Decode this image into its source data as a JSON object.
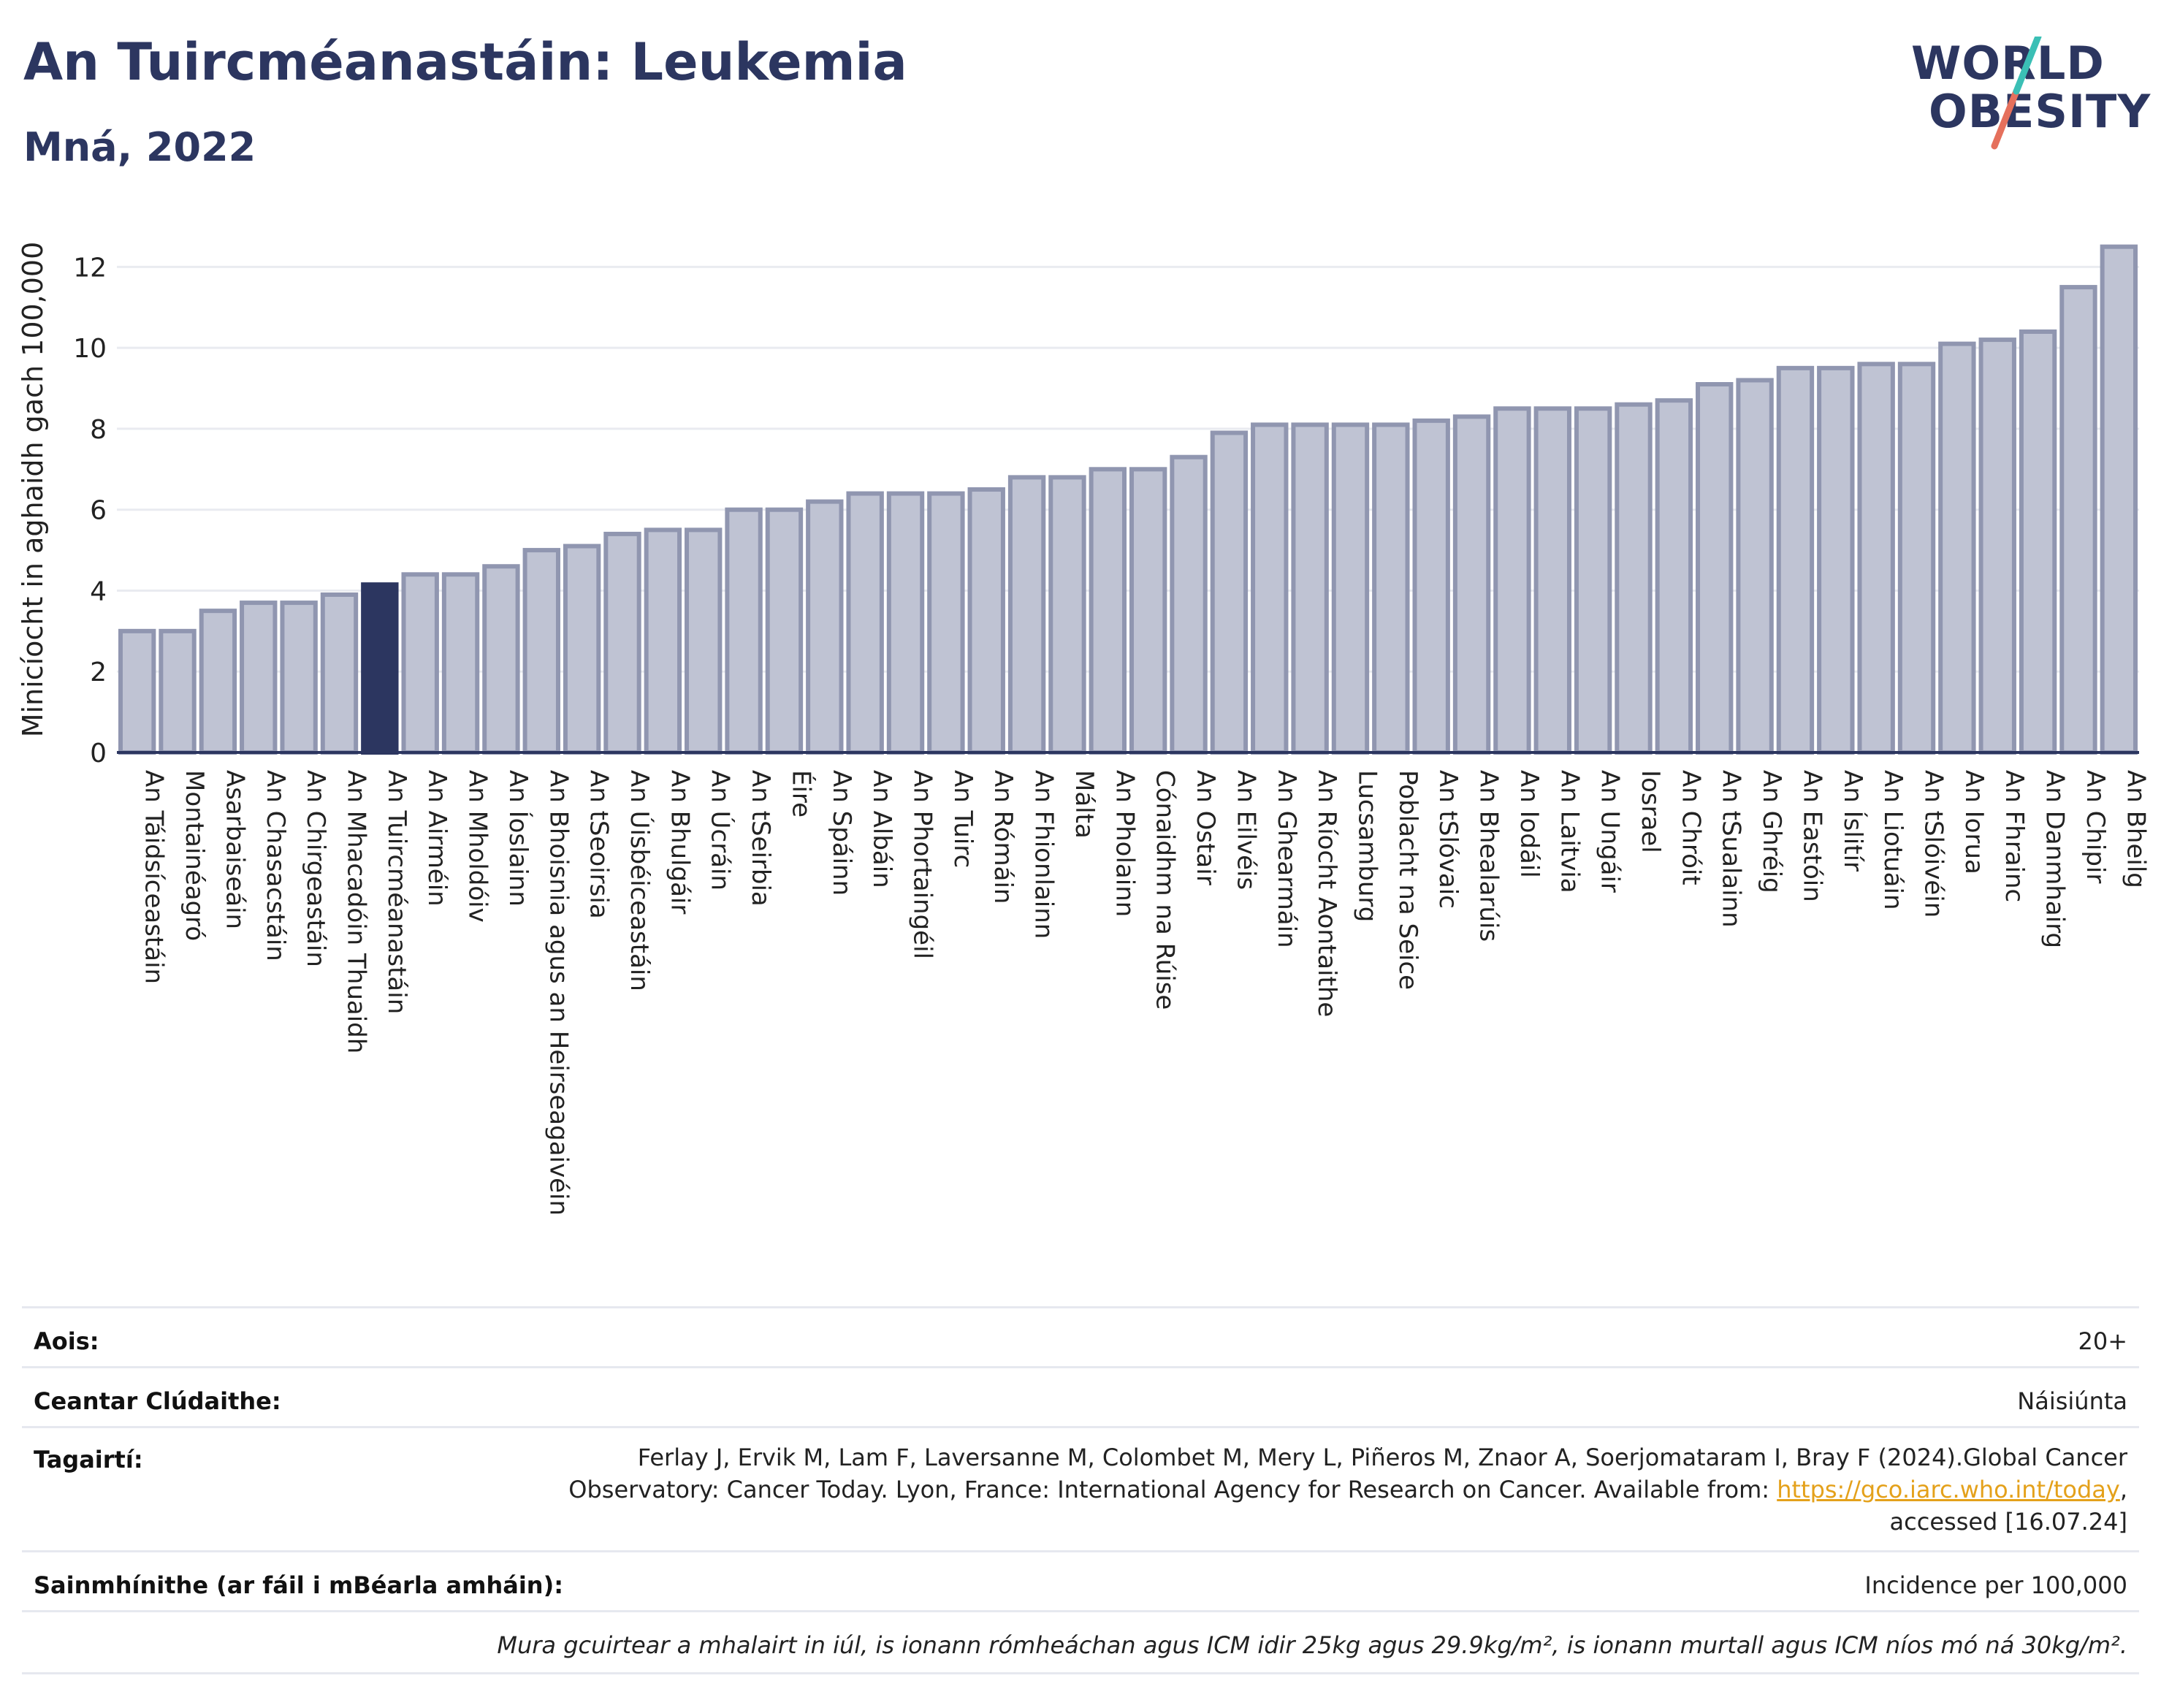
{
  "header": {
    "title": "An Tuircméanastáin: Leukemia",
    "subtitle": "Mná, 2022"
  },
  "logo": {
    "line1": "WORLD",
    "line2": "OBESITY"
  },
  "colors": {
    "bar": "#bfc3d3",
    "bar_border": "#9096b0",
    "highlight": "#2c3660",
    "title": "#2c3660"
  },
  "chart_data": {
    "type": "bar",
    "ylabel": "Minicíocht in aghaidh gach 100,000",
    "ylim": [
      0,
      13
    ],
    "yticks": [
      0,
      2,
      4,
      6,
      8,
      10,
      12
    ],
    "grid": true,
    "highlight": "An Tuircméanastáin",
    "categories": [
      "An Táidsíceastáin",
      "Montainéagró",
      "Asarbaiseáin",
      "An Chasacstáin",
      "An Chirgeastáin",
      "An Mhacadóin Thuaidh",
      "An Tuircméanastáin",
      "An Airméin",
      "An Mholdóiv",
      "An Íoslainn",
      "An Bhoisnia agus an Heirseagaivéin",
      "An tSeoirsia",
      "An Úisbéiceastáin",
      "An Bhulgáir",
      "An Úcráin",
      "An tSeirbia",
      "Éire",
      "An Spáinn",
      "An Albáin",
      "An Phortaingéil",
      "An Tuirc",
      "An Rómáin",
      "An Fhionlainn",
      "Málta",
      "An Pholainn",
      "Cónaidhm na Rúise",
      "An Ostair",
      "An Eilvéis",
      "An Ghearmáin",
      "An Ríocht Aontaithe",
      "Lucsamburg",
      "Poblacht na Seice",
      "An tSlóvaic",
      "An Bhealarúis",
      "An Iodáil",
      "An Laitvia",
      "An Ungáir",
      "Iosrael",
      "An Chróit",
      "An tSualainn",
      "An Ghréig",
      "An Eastóin",
      "An Íslitír",
      "An Liotuáin",
      "An tSlóivéin",
      "An Iorua",
      "An Fhrainc",
      "An Danmhairg",
      "An Chipir",
      "An Bheilg"
    ],
    "values": [
      3.0,
      3.0,
      3.5,
      3.7,
      3.7,
      3.9,
      4.15,
      4.4,
      4.4,
      4.6,
      5.0,
      5.1,
      5.4,
      5.5,
      5.5,
      6.0,
      6.0,
      6.2,
      6.4,
      6.4,
      6.4,
      6.5,
      6.8,
      6.8,
      7.0,
      7.0,
      7.3,
      7.9,
      8.1,
      8.1,
      8.1,
      8.1,
      8.2,
      8.3,
      8.5,
      8.5,
      8.5,
      8.6,
      8.7,
      9.1,
      9.2,
      9.5,
      9.5,
      9.6,
      9.6,
      10.1,
      10.2,
      10.4,
      11.5,
      12.5
    ]
  },
  "info": {
    "age_label": "Aois:",
    "age_value": "20+",
    "area_label": "Ceantar Clúdaithe:",
    "area_value": "Náisiúnta",
    "ref_label": "Tagairtí:",
    "ref_line1": "Ferlay J, Ervik M, Lam F, Laversanne M, Colombet M, Mery L, Piñeros M, Znaor A, Soerjomataram I, Bray F (2024).Global Cancer",
    "ref_line2": "Observatory: Cancer Today. Lyon, France: International Agency for Research on Cancer. Available from: ",
    "ref_link": "https://gco.iarc.who.int/today",
    "ref_line2_end": ",",
    "ref_line3": "accessed [16.07.24]",
    "def_label": "Sainmhínithe (ar fáil i mBéarla amháin):",
    "def_value": "Incidence per 100,000",
    "note": "Mura gcuirtear a mhalairt in iúl, is ionann rómheáchan agus ICM idir 25kg agus 29.9kg/m², is ionann murtall agus ICM níos mó ná 30kg/m²."
  }
}
